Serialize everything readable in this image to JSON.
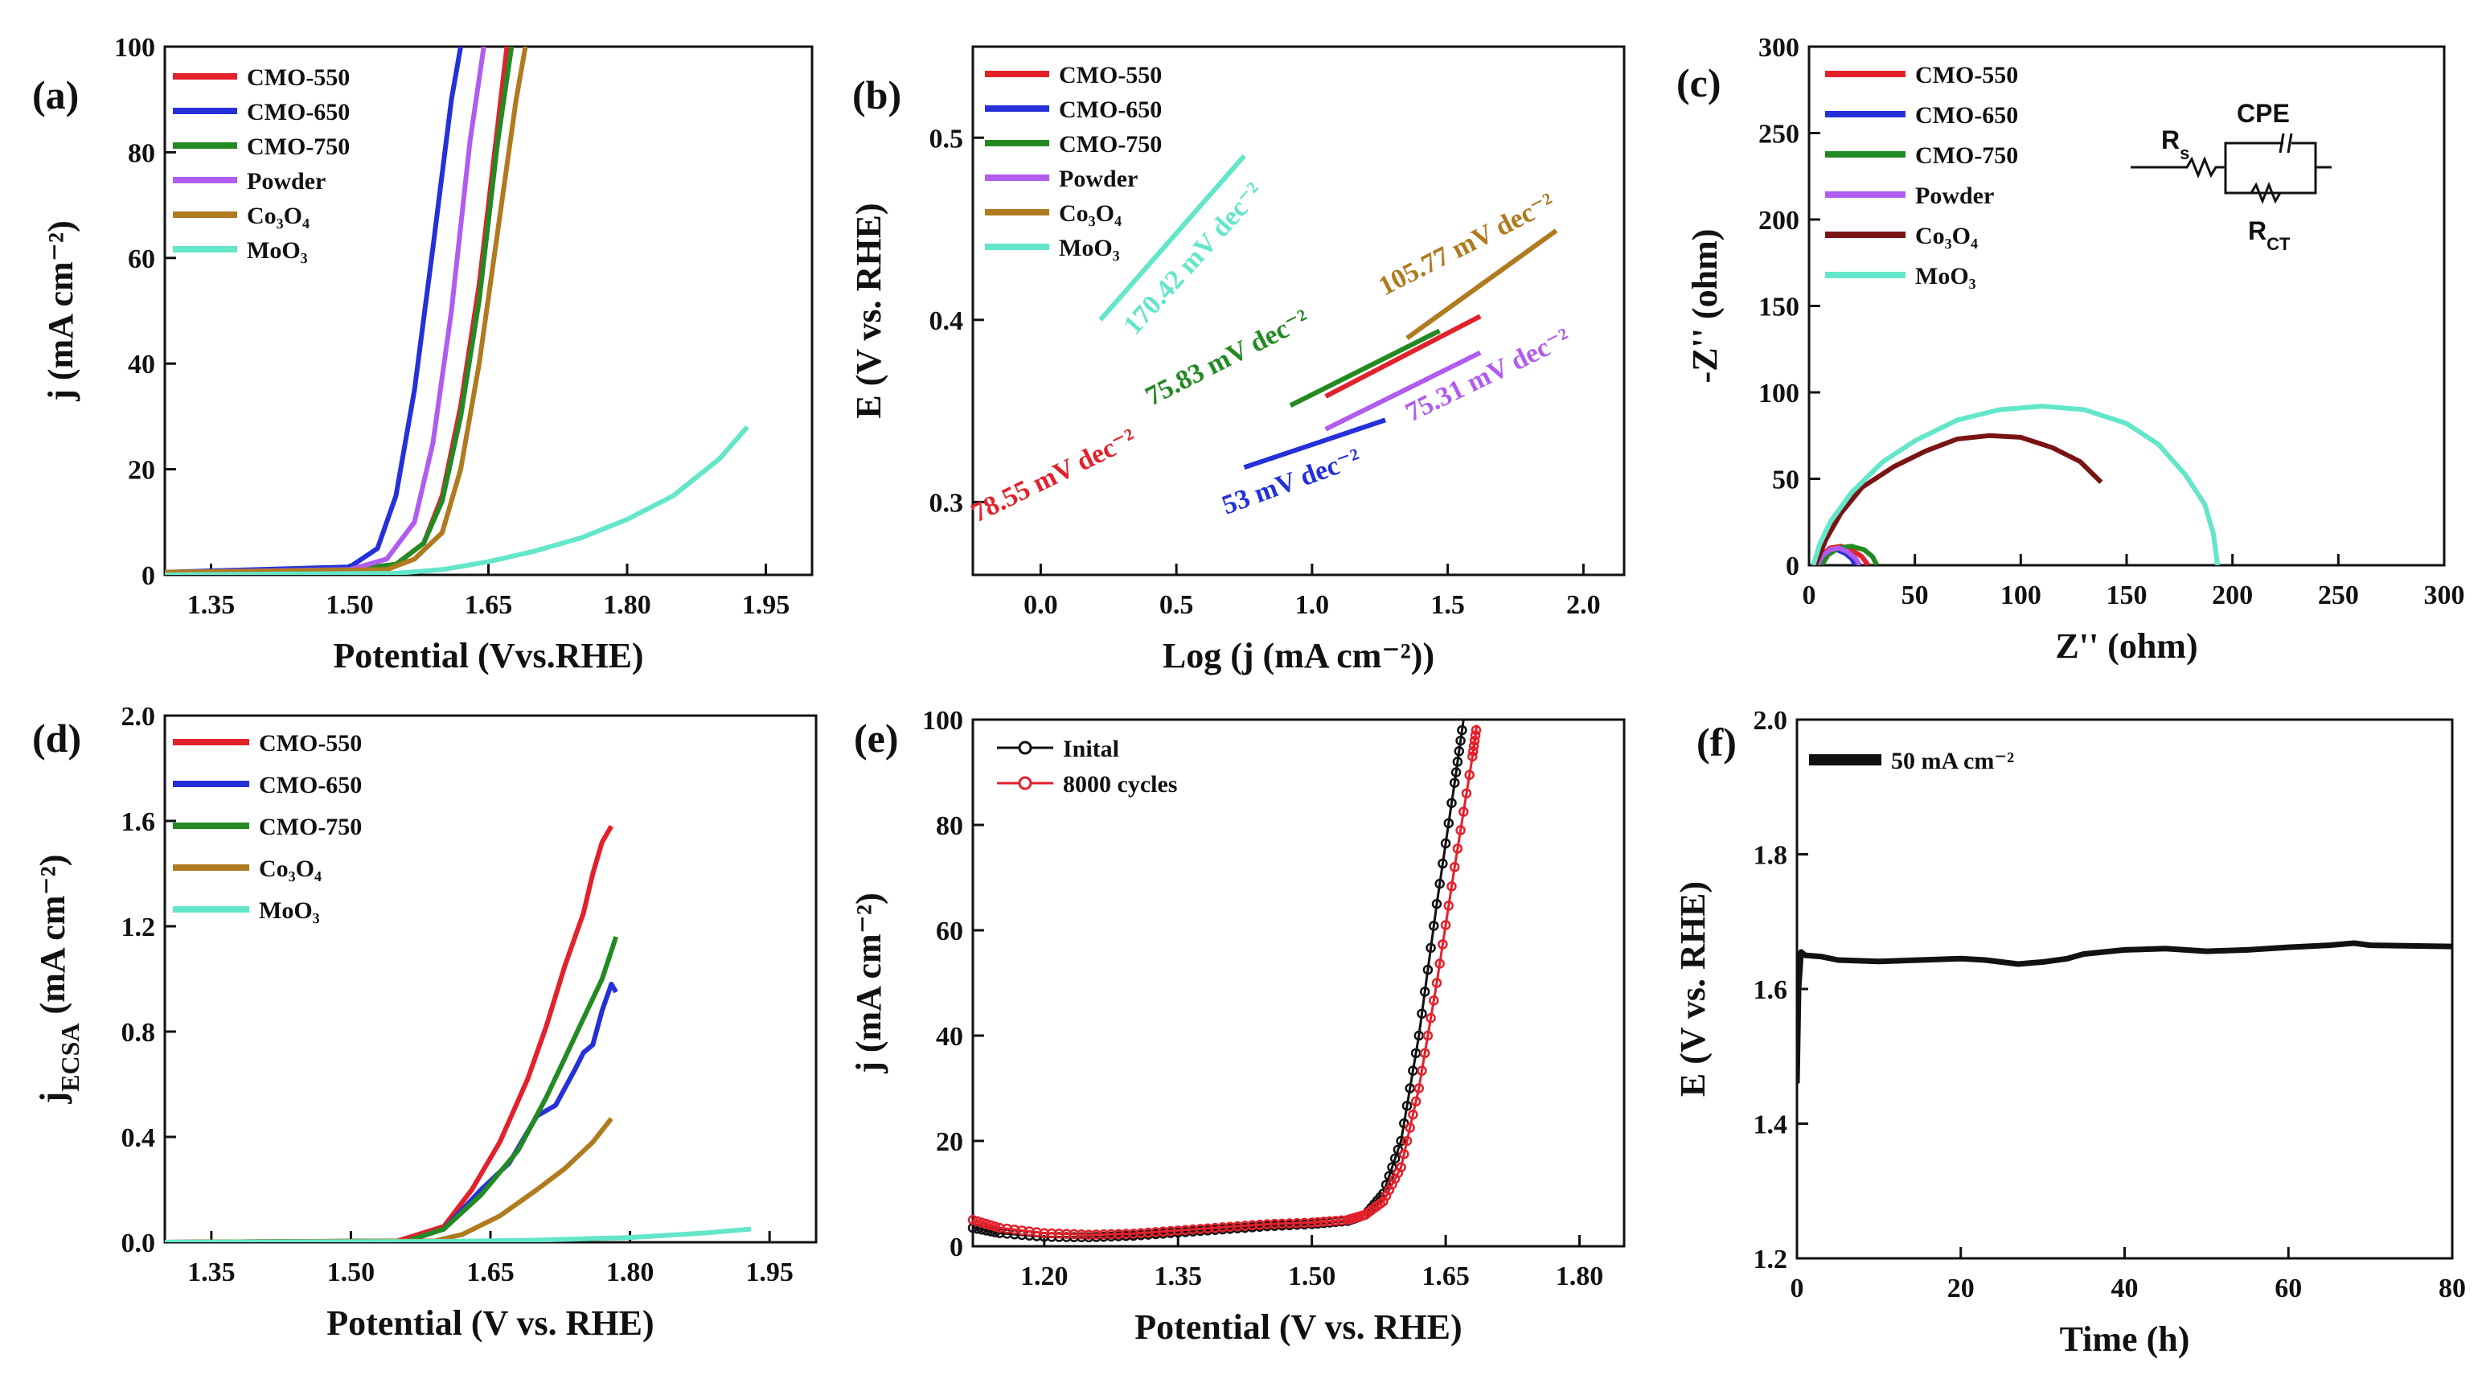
{
  "colors": {
    "CMO-550": "#e3212b",
    "CMO-650": "#2431d9",
    "CMO-750": "#238a23",
    "Powder": "#b05cf0",
    "Co3O4": "#b07a1f",
    "MoO3": "#63e6c9",
    "Co3O4_nyquist": "#7a1414",
    "black": "#111111",
    "cycles_red": "#e3212b"
  },
  "chart_data": [
    {
      "id": "a",
      "panel_label": "(a)",
      "type": "line",
      "xlabel": "Potential (Vvs.RHE)",
      "ylabel": "j (mA cm⁻²)",
      "xlim": [
        1.3,
        2.0
      ],
      "ylim": [
        0,
        100
      ],
      "xticks": [
        "1.35",
        "1.50",
        "1.65",
        "1.80",
        "1.95"
      ],
      "yticks": [
        "0",
        "20",
        "40",
        "60",
        "80",
        "100"
      ],
      "legend": [
        "CMO-550",
        "CMO-650",
        "CMO-750",
        "Powder",
        "Co₃O₄",
        "MoO₃"
      ],
      "series": [
        {
          "name": "CMO-550",
          "x": [
            1.3,
            1.5,
            1.55,
            1.58,
            1.6,
            1.62,
            1.64,
            1.66,
            1.67
          ],
          "values": [
            0.5,
            1,
            2,
            6,
            15,
            32,
            55,
            85,
            100
          ]
        },
        {
          "name": "CMO-650",
          "x": [
            1.3,
            1.5,
            1.53,
            1.55,
            1.57,
            1.59,
            1.61,
            1.62
          ],
          "values": [
            0.5,
            1.5,
            5,
            15,
            35,
            62,
            90,
            100
          ]
        },
        {
          "name": "CMO-750",
          "x": [
            1.3,
            1.5,
            1.55,
            1.58,
            1.6,
            1.62,
            1.64,
            1.66,
            1.675
          ],
          "values": [
            0.5,
            1,
            2,
            6,
            14,
            30,
            52,
            82,
            100
          ]
        },
        {
          "name": "Powder",
          "x": [
            1.3,
            1.5,
            1.54,
            1.57,
            1.59,
            1.61,
            1.63,
            1.645
          ],
          "values": [
            0.5,
            1,
            3,
            10,
            25,
            50,
            82,
            100
          ]
        },
        {
          "name": "Co₃O₄",
          "x": [
            1.3,
            1.54,
            1.57,
            1.6,
            1.62,
            1.64,
            1.66,
            1.68,
            1.69
          ],
          "values": [
            0.5,
            1,
            3,
            8,
            20,
            40,
            65,
            90,
            100
          ]
        },
        {
          "name": "MoO₃",
          "x": [
            1.3,
            1.55,
            1.6,
            1.65,
            1.7,
            1.75,
            1.8,
            1.85,
            1.9,
            1.93
          ],
          "values": [
            0,
            0.3,
            1,
            2.5,
            4.5,
            7,
            10.5,
            15,
            22,
            28
          ]
        }
      ]
    },
    {
      "id": "b",
      "panel_label": "(b)",
      "type": "line",
      "xlabel": "Log (j (mA cm⁻²))",
      "ylabel": "E (V vs. RHE)",
      "xlim": [
        -0.25,
        2.15
      ],
      "ylim": [
        0.26,
        0.55
      ],
      "xticks": [
        "0.0",
        "0.5",
        "1.0",
        "1.5",
        "2.0"
      ],
      "yticks": [
        "0.3",
        "0.4",
        "0.5"
      ],
      "legend": [
        "CMO-550",
        "CMO-650",
        "CMO-750",
        "Powder",
        "Co₃O₄",
        "MoO₃"
      ],
      "series": [
        {
          "name": "CMO-550",
          "x": [
            1.05,
            1.62
          ],
          "values": [
            0.358,
            0.402
          ],
          "annotation": "78.55 mV dec⁻²"
        },
        {
          "name": "CMO-650",
          "x": [
            0.75,
            1.27
          ],
          "values": [
            0.319,
            0.345
          ],
          "annotation": "53 mV dec⁻²"
        },
        {
          "name": "CMO-750",
          "x": [
            0.92,
            1.47
          ],
          "values": [
            0.353,
            0.394
          ],
          "annotation": "75.83 mV dec⁻²"
        },
        {
          "name": "Powder",
          "x": [
            1.05,
            1.62
          ],
          "values": [
            0.34,
            0.382
          ],
          "annotation": "75.31 mV dec⁻²"
        },
        {
          "name": "Co₃O₄",
          "x": [
            1.35,
            1.9
          ],
          "values": [
            0.39,
            0.449
          ],
          "annotation": "105.77 mV dec⁻²"
        },
        {
          "name": "MoO₃",
          "x": [
            0.22,
            0.75
          ],
          "values": [
            0.4,
            0.49
          ],
          "annotation": "170.42 mV dec⁻²"
        }
      ]
    },
    {
      "id": "c",
      "panel_label": "(c)",
      "type": "line",
      "xlabel": "Z'' (ohm)",
      "ylabel": "-Z'' (ohm)",
      "xlim": [
        0,
        300
      ],
      "ylim": [
        0,
        300
      ],
      "xticks": [
        "0",
        "50",
        "100",
        "150",
        "200",
        "250",
        "300"
      ],
      "yticks": [
        "0",
        "50",
        "100",
        "150",
        "200",
        "250",
        "300"
      ],
      "legend": [
        "CMO-550",
        "CMO-650",
        "CMO-750",
        "Powder",
        "Co₃O₄",
        "MoO₃"
      ],
      "circuit": {
        "rs": "R",
        "rs_sub": "s",
        "cpe": "CPE",
        "rct": "R",
        "rct_sub": "CT"
      },
      "series": [
        {
          "name": "CMO-550",
          "x": [
            4,
            6,
            10,
            15,
            20,
            25,
            28
          ],
          "values": [
            0,
            6,
            10,
            11,
            9,
            5,
            0
          ]
        },
        {
          "name": "CMO-650",
          "x": [
            4,
            6,
            9,
            13,
            17,
            20,
            22
          ],
          "values": [
            0,
            5,
            8,
            9,
            7,
            4,
            0
          ]
        },
        {
          "name": "CMO-750",
          "x": [
            6,
            9,
            14,
            20,
            26,
            30,
            32
          ],
          "values": [
            0,
            6,
            10,
            11,
            9,
            5,
            0
          ]
        },
        {
          "name": "Powder",
          "x": [
            4,
            6,
            10,
            14,
            18,
            22,
            24
          ],
          "values": [
            0,
            5,
            9,
            10,
            8,
            4,
            0
          ]
        },
        {
          "name": "Co₃O₄",
          "x": [
            3,
            8,
            15,
            25,
            40,
            55,
            70,
            85,
            100,
            115,
            128,
            138
          ],
          "values": [
            0,
            15,
            30,
            45,
            57,
            66,
            73,
            75,
            74,
            68,
            60,
            48
          ]
        },
        {
          "name": "MoO₃",
          "x": [
            2,
            5,
            10,
            20,
            35,
            50,
            70,
            90,
            110,
            130,
            150,
            165,
            178,
            187,
            191,
            193
          ],
          "values": [
            0,
            12,
            25,
            42,
            60,
            72,
            84,
            90,
            92,
            90,
            82,
            70,
            52,
            35,
            18,
            0
          ]
        }
      ]
    },
    {
      "id": "d",
      "panel_label": "(d)",
      "type": "line",
      "xlabel": "Potential (V vs. RHE)",
      "ylabel": "j_ECSA (mA cm⁻²)",
      "ylabel_main": "j",
      "ylabel_sub": "ECSA",
      "ylabel_rest": " (mA cm⁻²)",
      "xlim": [
        1.3,
        2.0
      ],
      "ylim": [
        0,
        2.0
      ],
      "xticks": [
        "1.35",
        "1.50",
        "1.65",
        "1.80",
        "1.95"
      ],
      "yticks": [
        "0.0",
        "0.4",
        "0.8",
        "1.2",
        "1.6",
        "2.0"
      ],
      "legend": [
        "CMO-550",
        "CMO-650",
        "CMO-750",
        "Co₃O₄",
        "MoO₃"
      ],
      "series": [
        {
          "name": "CMO-550",
          "x": [
            1.3,
            1.55,
            1.6,
            1.63,
            1.66,
            1.69,
            1.71,
            1.73,
            1.75,
            1.76,
            1.77,
            1.78
          ],
          "values": [
            0,
            0.005,
            0.06,
            0.2,
            0.38,
            0.62,
            0.82,
            1.05,
            1.25,
            1.4,
            1.52,
            1.58
          ]
        },
        {
          "name": "CMO-650",
          "x": [
            1.3,
            1.56,
            1.6,
            1.64,
            1.67,
            1.7,
            1.72,
            1.74,
            1.75,
            1.76,
            1.77,
            1.78,
            1.785
          ],
          "values": [
            0,
            0.005,
            0.05,
            0.2,
            0.3,
            0.48,
            0.52,
            0.65,
            0.72,
            0.75,
            0.88,
            0.98,
            0.95
          ]
        },
        {
          "name": "CMO-750",
          "x": [
            1.3,
            1.56,
            1.6,
            1.64,
            1.68,
            1.71,
            1.73,
            1.75,
            1.77,
            1.785
          ],
          "values": [
            0,
            0.005,
            0.05,
            0.18,
            0.35,
            0.55,
            0.7,
            0.85,
            1.0,
            1.16
          ]
        },
        {
          "name": "Co₃O₄",
          "x": [
            1.3,
            1.59,
            1.62,
            1.66,
            1.7,
            1.73,
            1.76,
            1.78
          ],
          "values": [
            0,
            0.005,
            0.03,
            0.1,
            0.2,
            0.28,
            0.38,
            0.47
          ]
        },
        {
          "name": "MoO₃",
          "x": [
            1.3,
            1.6,
            1.7,
            1.8,
            1.88,
            1.93
          ],
          "values": [
            0,
            0.003,
            0.008,
            0.018,
            0.035,
            0.05
          ]
        }
      ]
    },
    {
      "id": "e",
      "panel_label": "(e)",
      "type": "line",
      "xlabel": "Potential (V vs. RHE)",
      "ylabel": "j (mA cm⁻²)",
      "xlim": [
        1.12,
        1.85
      ],
      "ylim": [
        0,
        100
      ],
      "xticks": [
        "1.20",
        "1.35",
        "1.50",
        "1.65",
        "1.80"
      ],
      "yticks": [
        "0",
        "20",
        "40",
        "60",
        "80",
        "100"
      ],
      "legend": [
        "Inital",
        "8000 cycles"
      ],
      "series": [
        {
          "name": "Inital",
          "x": [
            1.12,
            1.15,
            1.2,
            1.25,
            1.3,
            1.35,
            1.4,
            1.45,
            1.5,
            1.54,
            1.56,
            1.58,
            1.6,
            1.62,
            1.64,
            1.66,
            1.67
          ],
          "values": [
            3.5,
            2.5,
            1.8,
            1.7,
            2.0,
            2.6,
            3.2,
            3.8,
            4.2,
            4.8,
            6,
            10,
            20,
            40,
            65,
            88,
            100
          ]
        },
        {
          "name": "8000 cycles",
          "x": [
            1.12,
            1.15,
            1.2,
            1.25,
            1.3,
            1.35,
            1.4,
            1.45,
            1.5,
            1.54,
            1.56,
            1.58,
            1.6,
            1.62,
            1.64,
            1.66,
            1.68,
            1.685
          ],
          "values": [
            5,
            3.5,
            2.5,
            2.2,
            2.4,
            3.0,
            3.6,
            4.2,
            4.5,
            5,
            6,
            8.5,
            15,
            30,
            50,
            72,
            93,
            99
          ]
        }
      ]
    },
    {
      "id": "f",
      "panel_label": "(f)",
      "type": "line",
      "xlabel": "Time (h)",
      "ylabel": "E (V vs. RHE)",
      "xlim": [
        0,
        80
      ],
      "ylim": [
        1.2,
        2.0
      ],
      "xticks": [
        "0",
        "20",
        "40",
        "60",
        "80"
      ],
      "yticks": [
        "1.2",
        "1.4",
        "1.6",
        "1.8",
        "2.0"
      ],
      "legend": [
        "50 mA cm⁻²"
      ],
      "series": [
        {
          "name": "50 mA cm⁻²",
          "x": [
            0,
            0.2,
            0.5,
            1,
            3,
            5,
            10,
            15,
            20,
            23,
            25,
            27,
            29,
            30,
            33,
            35,
            40,
            45,
            50,
            55,
            60,
            65,
            68,
            70,
            75,
            80
          ],
          "values": [
            1.46,
            1.6,
            1.655,
            1.65,
            1.648,
            1.643,
            1.641,
            1.643,
            1.645,
            1.643,
            1.64,
            1.637,
            1.639,
            1.64,
            1.645,
            1.652,
            1.658,
            1.66,
            1.656,
            1.658,
            1.662,
            1.665,
            1.668,
            1.665,
            1.664,
            1.663
          ]
        }
      ]
    }
  ]
}
